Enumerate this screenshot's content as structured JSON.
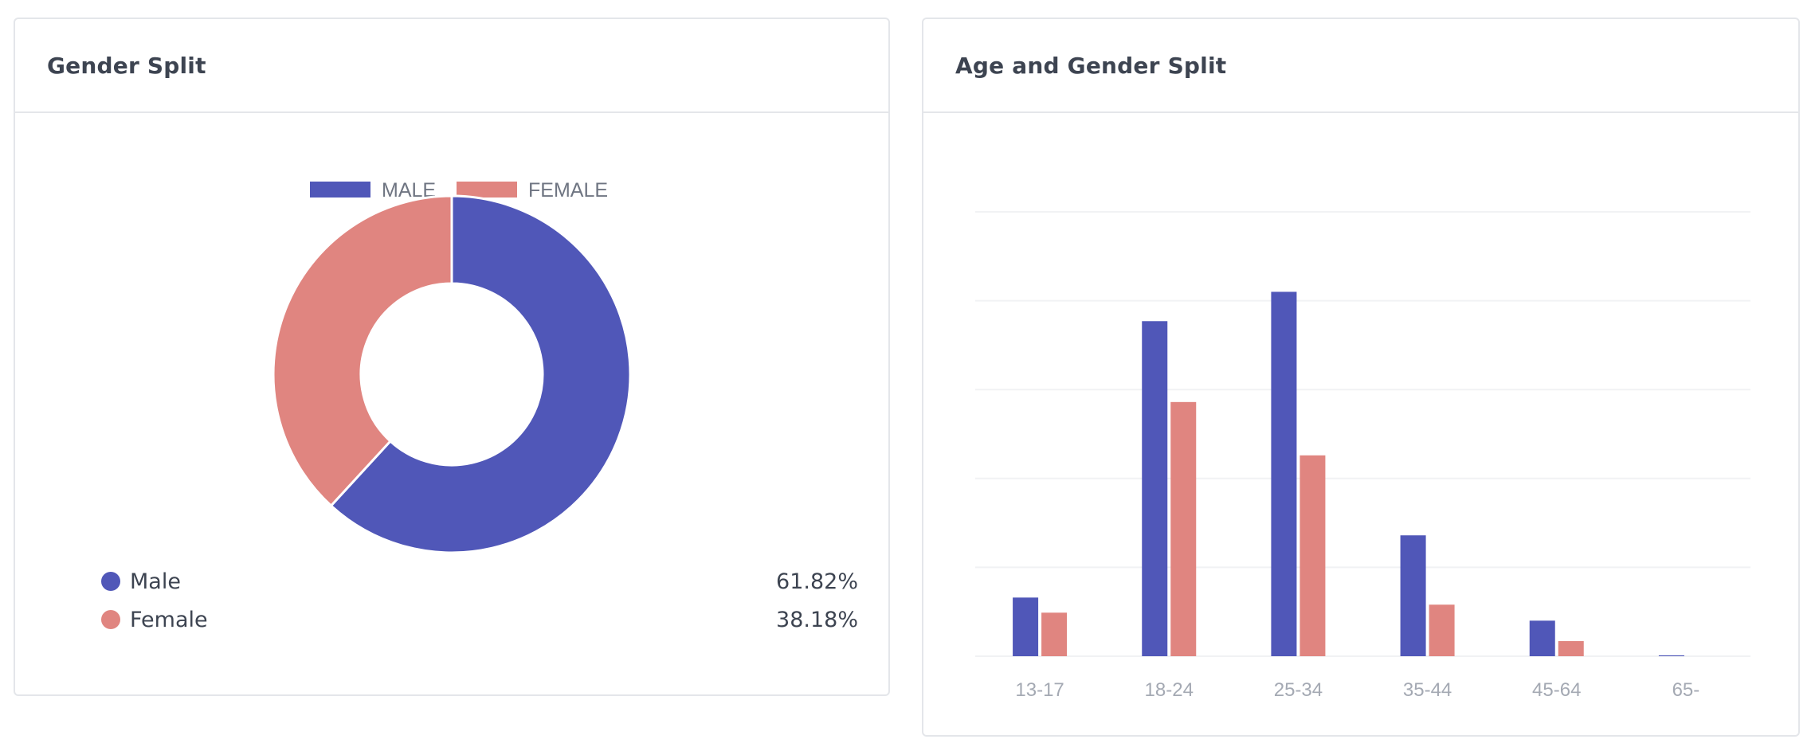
{
  "colors": {
    "male": "#5057b8",
    "female": "#e08580"
  },
  "cards": {
    "gender_split": {
      "title": "Gender Split",
      "legend": [
        {
          "label": "Male",
          "value": "61.82%"
        },
        {
          "label": "Female",
          "value": "38.18%"
        }
      ]
    },
    "age_gender_split": {
      "title": "Age and Gender Split"
    }
  },
  "chart_data": [
    {
      "type": "pie",
      "variant": "doughnut",
      "legend_position": "top",
      "labels": [
        "MALE",
        "FEMALE"
      ],
      "values": [
        61.82,
        38.18
      ]
    },
    {
      "type": "bar",
      "categories": [
        "13-17",
        "18-24",
        "25-34",
        "35-44",
        "45-64",
        "65-"
      ],
      "series": [
        {
          "values": [
            6.6,
            37.7,
            41.0,
            13.6,
            4.0,
            0.1
          ]
        },
        {
          "values": [
            4.9,
            28.6,
            22.6,
            5.8,
            1.7,
            0.0
          ]
        }
      ],
      "ylim": [
        0,
        50
      ],
      "grid": true
    }
  ]
}
